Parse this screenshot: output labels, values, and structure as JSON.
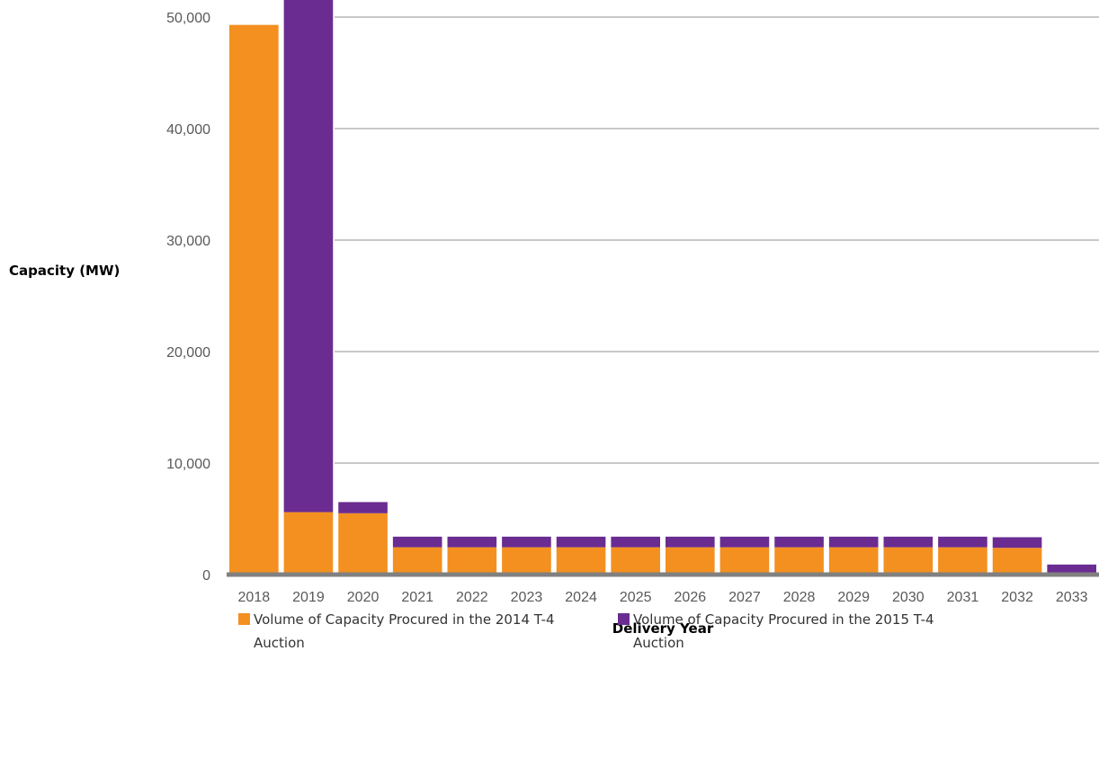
{
  "chart_data": {
    "type": "bar",
    "stacked": true,
    "categories": [
      "2018",
      "2019",
      "2020",
      "2021",
      "2022",
      "2023",
      "2024",
      "2025",
      "2026",
      "2027",
      "2028",
      "2029",
      "2030",
      "2031",
      "2032",
      "2033"
    ],
    "series": [
      {
        "name": "Volume of Capacity Procured in the 2014 T-4 Auction",
        "color": "#F39020",
        "values": [
          49300,
          5600,
          5500,
          2450,
          2450,
          2450,
          2450,
          2450,
          2450,
          2450,
          2450,
          2450,
          2450,
          2450,
          2400,
          0
        ]
      },
      {
        "name": "Volume of Capacity Procured in the 2015 T-4 Auction",
        "color": "#6A2C91",
        "values": [
          0,
          46500,
          1000,
          950,
          950,
          950,
          950,
          950,
          950,
          950,
          950,
          950,
          950,
          950,
          950,
          900
        ]
      }
    ],
    "xlabel": "Delivery Year",
    "ylabel": "Capacity (MW)",
    "ylim": [
      0,
      50000
    ],
    "yticks": [
      0,
      10000,
      20000,
      30000,
      40000,
      50000
    ],
    "ytick_labels": [
      "0",
      "10,000",
      "20,000",
      "30,000",
      "40,000",
      "50,000"
    ],
    "grid": true,
    "legend_position": "bottom"
  }
}
